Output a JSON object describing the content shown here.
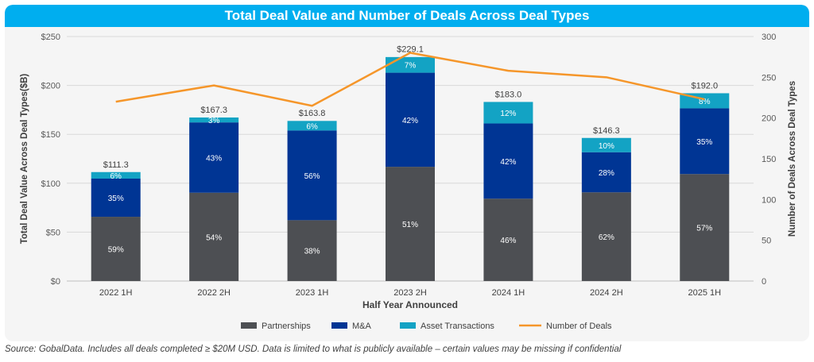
{
  "chart_data": {
    "type": "bar",
    "title": "Total Deal Value and Number of Deals Across Deal Types",
    "xlabel": "Half Year Announced",
    "ylabel": "Total Deal Value Across Deal Types($B)",
    "y2label": "Number of Deals Across Deal Types",
    "categories": [
      "2022 1H",
      "2022 2H",
      "2023 1H",
      "2023 2H",
      "2024 1H",
      "2024 2H",
      "2025 1H"
    ],
    "ylim": [
      0,
      250
    ],
    "y2lim": [
      0,
      300
    ],
    "yticks": [
      "$0",
      "$50",
      "$100",
      "$150",
      "$200",
      "$250"
    ],
    "y2ticks": [
      "0",
      "50",
      "100",
      "150",
      "200",
      "250",
      "300"
    ],
    "totals": [
      "$111.3",
      "$167.3",
      "$163.8",
      "$229.1",
      "$183.0",
      "$146.3",
      "$192.0"
    ],
    "total_values": [
      111.3,
      167.3,
      163.8,
      229.1,
      183.0,
      146.3,
      192.0
    ],
    "series": [
      {
        "name": "Partnerships",
        "color": "#4d4f53",
        "values": [
          65.7,
          90.3,
          62.2,
          116.8,
          84.2,
          90.7,
          109.4
        ],
        "labels": [
          "59%",
          "54%",
          "38%",
          "51%",
          "46%",
          "62%",
          "57%"
        ]
      },
      {
        "name": "M&A",
        "color": "#003594",
        "values": [
          39.0,
          71.9,
          91.7,
          96.2,
          76.9,
          41.0,
          67.2
        ],
        "labels": [
          "35%",
          "43%",
          "56%",
          "42%",
          "42%",
          "28%",
          "35%"
        ]
      },
      {
        "name": "Asset Transactions",
        "color": "#13a3c4",
        "values": [
          6.7,
          5.0,
          9.8,
          16.0,
          22.0,
          14.6,
          15.4
        ],
        "labels": [
          "6%",
          "3%",
          "6%",
          "7%",
          "12%",
          "10%",
          "8%"
        ]
      }
    ],
    "line": {
      "name": "Number of Deals",
      "color": "#f5962a",
      "axis": "right",
      "values": [
        220,
        240,
        215,
        280,
        258,
        250,
        223
      ]
    },
    "legend_position": "bottom",
    "grid": true
  },
  "footnote": "Source: GobalData. Includes all deals completed ≥ $20M USD. Data is limited to what is publicly available – certain values may be missing if confidential"
}
